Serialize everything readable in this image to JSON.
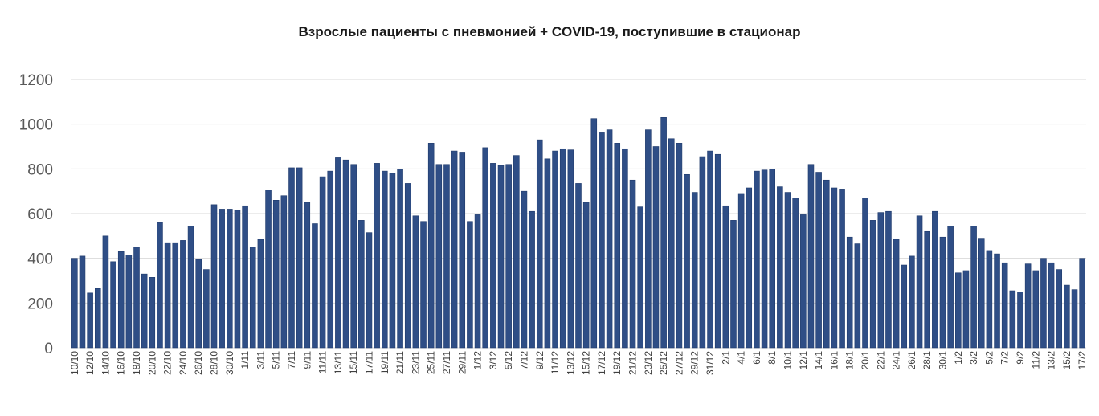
{
  "chart_data": {
    "type": "bar",
    "title": "Взрослые пациенты с пневмонией + COVID-19, поступившие в стационар",
    "xlabel": "",
    "ylabel": "",
    "ylim": [
      0,
      1200
    ],
    "yticks": [
      0,
      200,
      400,
      600,
      800,
      1000,
      1200
    ],
    "grid": true,
    "colors": {
      "bar": "#2f4e86",
      "grid": "#d9d9d9"
    },
    "start_date": "2020-10-10",
    "label_every": 2,
    "values": [
      400,
      410,
      245,
      265,
      500,
      385,
      430,
      415,
      450,
      330,
      315,
      560,
      470,
      470,
      480,
      545,
      395,
      350,
      640,
      620,
      620,
      615,
      635,
      450,
      485,
      705,
      660,
      680,
      805,
      805,
      650,
      555,
      765,
      790,
      850,
      840,
      820,
      570,
      515,
      825,
      790,
      780,
      800,
      735,
      590,
      565,
      915,
      820,
      820,
      880,
      875,
      565,
      595,
      895,
      825,
      815,
      820,
      860,
      700,
      610,
      930,
      845,
      880,
      890,
      885,
      735,
      650,
      1025,
      965,
      975,
      915,
      890,
      750,
      630,
      975,
      900,
      1030,
      935,
      915,
      775,
      695,
      855,
      880,
      865,
      635,
      570,
      690,
      715,
      790,
      795,
      800,
      720,
      695,
      670,
      595,
      820,
      785,
      750,
      715,
      710,
      495,
      465,
      670,
      570,
      605,
      610,
      485,
      370,
      410,
      590,
      520,
      610,
      495,
      545,
      335,
      345,
      545,
      490,
      435,
      420,
      380,
      255,
      250,
      375,
      345,
      400,
      380,
      350,
      280,
      260,
      400
    ],
    "categories": [
      "10/10",
      "11/10",
      "12/10",
      "13/10",
      "14/10",
      "15/10",
      "16/10",
      "17/10",
      "18/10",
      "19/10",
      "20/10",
      "21/10",
      "22/10",
      "23/10",
      "24/10",
      "25/10",
      "26/10",
      "27/10",
      "28/10",
      "29/10",
      "30/10",
      "31/10",
      "1/11",
      "2/11",
      "3/11",
      "4/11",
      "5/11",
      "6/11",
      "7/11",
      "8/11",
      "9/11",
      "10/11",
      "11/11",
      "12/11",
      "13/11",
      "14/11",
      "15/11",
      "16/11",
      "17/11",
      "18/11",
      "19/11",
      "20/11",
      "21/11",
      "22/11",
      "23/11",
      "24/11",
      "25/11",
      "26/11",
      "27/11",
      "28/11",
      "29/11",
      "30/11",
      "1/12",
      "2/12",
      "3/12",
      "4/12",
      "5/12",
      "6/12",
      "7/12",
      "8/12",
      "9/12",
      "10/12",
      "11/12",
      "12/12",
      "13/12",
      "14/12",
      "15/12",
      "16/12",
      "17/12",
      "18/12",
      "19/12",
      "20/12",
      "21/12",
      "22/12",
      "23/12",
      "24/12",
      "25/12",
      "26/12",
      "27/12",
      "28/12",
      "29/12",
      "30/12",
      "31/12",
      "1/1",
      "2/1",
      "3/1",
      "4/1",
      "5/1",
      "6/1",
      "7/1",
      "8/1",
      "9/1",
      "10/1",
      "11/1",
      "12/1",
      "13/1",
      "14/1",
      "15/1",
      "16/1",
      "17/1",
      "18/1",
      "19/1",
      "20/1",
      "21/1",
      "22/1",
      "23/1",
      "24/1",
      "25/1",
      "26/1",
      "27/1",
      "28/1",
      "29/1",
      "30/1",
      "31/1",
      "1/2",
      "2/2",
      "3/2",
      "4/2",
      "5/2",
      "6/2",
      "7/2",
      "8/2",
      "9/2",
      "10/2",
      "11/2",
      "12/2",
      "13/2",
      "14/2",
      "15/2",
      "16/2",
      "17/2"
    ]
  }
}
